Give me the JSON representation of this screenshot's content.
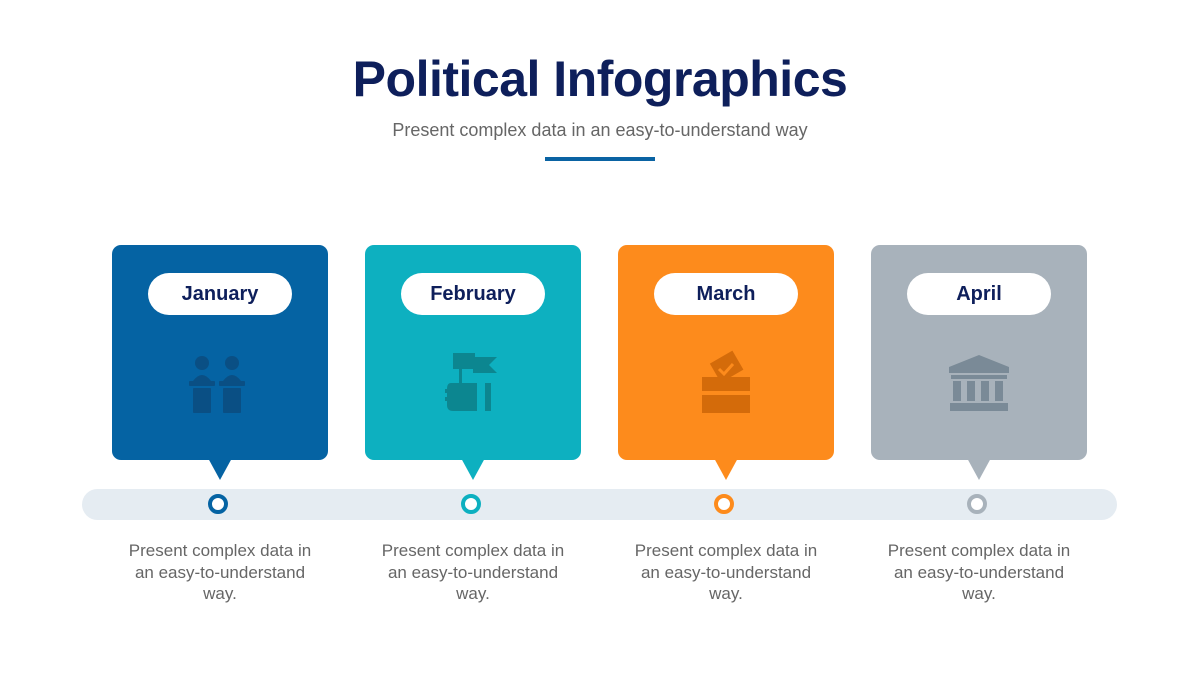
{
  "header": {
    "title": "Political Infographics",
    "subtitle": "Present complex data in an easy-to-understand way",
    "accent": "#0a63a3"
  },
  "steps": [
    {
      "label": "January",
      "color": "#0563a3",
      "icon": "debate-podiums-icon",
      "description": "Present complex data in an easy-to-understand way."
    },
    {
      "label": "February",
      "color": "#0db0c0",
      "icon": "hand-holding-flag-icon",
      "description": "Present complex data in an easy-to-understand way."
    },
    {
      "label": "March",
      "color": "#fd8b1c",
      "icon": "ballot-box-icon",
      "description": "Present complex data in an easy-to-understand way."
    },
    {
      "label": "April",
      "color": "#a8b2bb",
      "icon": "government-building-icon",
      "description": "Present complex data in an easy-to-understand way."
    }
  ]
}
